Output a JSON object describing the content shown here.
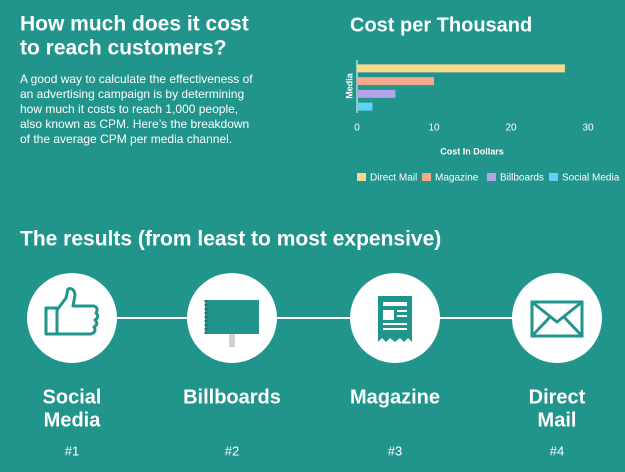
{
  "intro": {
    "heading_lines": [
      "How much does it cost",
      "to reach customers?"
    ],
    "paragraph_lines": [
      "A good way to calculate the effectiveness of",
      "an advertising campaign is by determining",
      "how much it costs to reach 1,000 people,",
      "also known as CPM. Here’s the breakdown",
      "of the average CPM per media channel."
    ]
  },
  "chart_data": {
    "type": "hbar",
    "title": "Cost per Thousand",
    "xlabel": "Cost In Dollars",
    "ylabel": "Media",
    "categories": [
      "Direct Mail",
      "Magazine",
      "Billboards",
      "Social Media"
    ],
    "values": [
      27,
      10,
      5,
      2
    ],
    "colors": [
      "#f9d98c",
      "#f4a98a",
      "#b3a3e8",
      "#5fd3f3"
    ],
    "xlim": [
      0,
      30
    ],
    "xticks": [
      0,
      10,
      20,
      30
    ],
    "grid": false,
    "legend": "bottom"
  },
  "results": {
    "heading": "The results (from least to most expensive)",
    "items": [
      {
        "lines": [
          "Social",
          "Media"
        ],
        "rank": "#1"
      },
      {
        "lines": [
          "Billboards"
        ],
        "rank": "#2"
      },
      {
        "lines": [
          "Magazine"
        ],
        "rank": "#3"
      },
      {
        "lines": [
          "Direct",
          "Mail"
        ],
        "rank": "#4"
      }
    ]
  }
}
